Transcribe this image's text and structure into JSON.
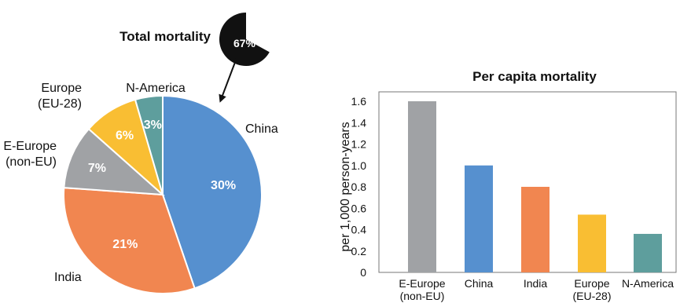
{
  "chart_data": [
    {
      "type": "pie",
      "title": "Total mortality",
      "inset_value_label": "67%",
      "inset_value": 67,
      "slices": [
        {
          "name": "China",
          "value": 30,
          "label": "30%",
          "color": "#5690CF"
        },
        {
          "name": "India",
          "value": 21,
          "label": "21%",
          "color": "#F18650"
        },
        {
          "name": "E-Europe\n(non-EU)",
          "value": 7,
          "label": "7%",
          "color": "#A0A2A5"
        },
        {
          "name": "Europe\n(EU-28)",
          "value": 6,
          "label": "6%",
          "color": "#F9BE33"
        },
        {
          "name": "N-America",
          "value": 3,
          "label": "3%",
          "color": "#5E9E9D"
        }
      ]
    },
    {
      "type": "bar",
      "title": "Per capita mortality",
      "xlabel": "",
      "ylabel": "per 1,000 person-years",
      "ylim": [
        0,
        1.6
      ],
      "yticks": [
        "0",
        "0.2",
        "0.4",
        "0.6",
        "0.8",
        "1.0",
        "1.2",
        "1.4",
        "1.6"
      ],
      "grid": false,
      "categories": [
        "E-Europe\n(non-EU)",
        "China",
        "India",
        "Europe\n(EU-28)",
        "N-America"
      ],
      "values": [
        1.6,
        1.0,
        0.8,
        0.54,
        0.36
      ],
      "colors": [
        "#A0A2A5",
        "#5690CF",
        "#F18650",
        "#F9BE33",
        "#5E9E9D"
      ]
    }
  ]
}
